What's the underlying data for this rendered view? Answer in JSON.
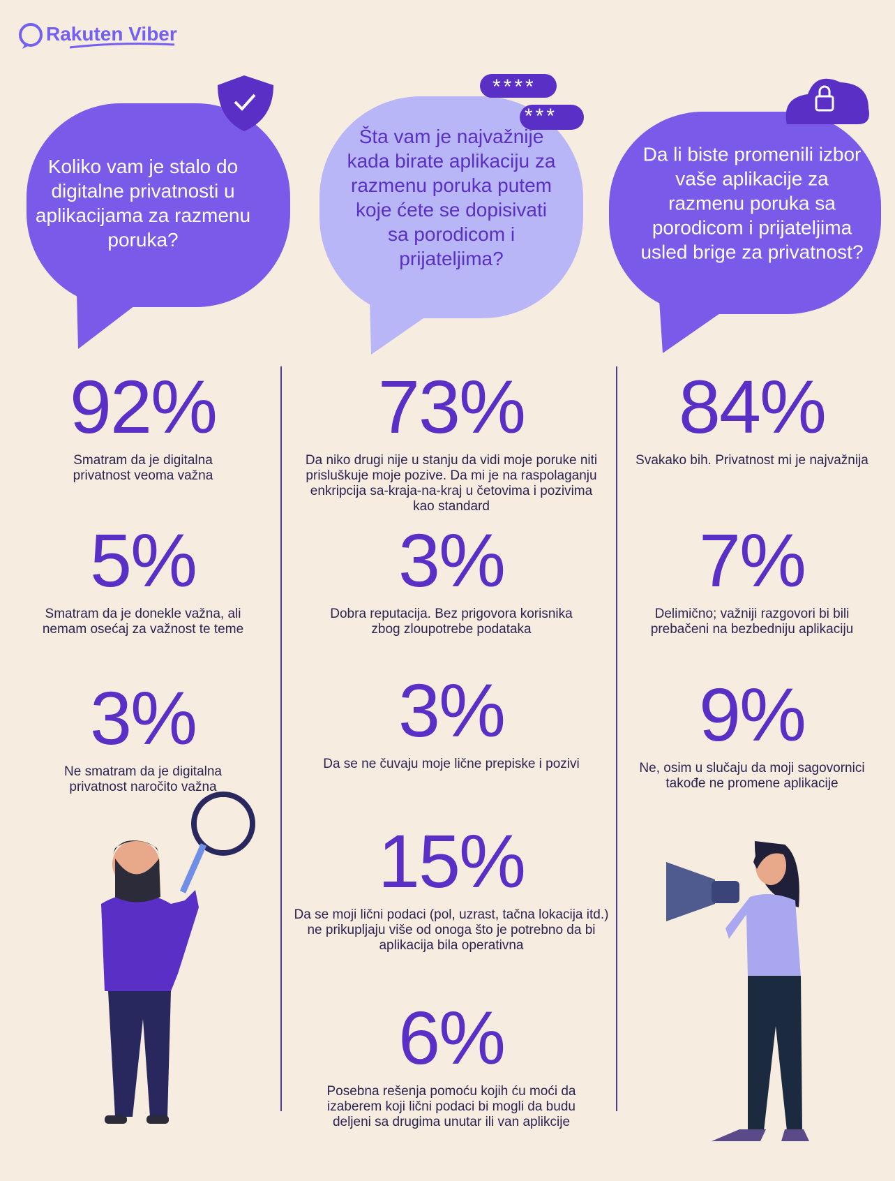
{
  "logo": "Rakuten Viber",
  "columns": [
    {
      "question": "Koliko vam je stalo do digitalne privatnosti u aplikacijama za razmenu poruka?",
      "stats": [
        {
          "value": "92%",
          "label": "Smatram da je digitalna privatnost veoma važna"
        },
        {
          "value": "5%",
          "label": "Smatram da je donekle važna, ali nemam osećaj za važnost te teme"
        },
        {
          "value": "3%",
          "label": "Ne smatram da je digitalna privatnost naročito važna"
        }
      ]
    },
    {
      "question": "Šta vam je najvažnije kada birate aplikaciju za razmenu poruka putem koje ćete se dopisivati sa porodicom i prijateljima?",
      "badges": [
        "****",
        "***"
      ],
      "stats": [
        {
          "value": "73%",
          "label": "Da niko drugi nije u stanju da vidi moje poruke niti prisluškuje moje pozive. Da mi je na raspolaganju enkripcija sa-kraja-na-kraj u četovima i pozivima kao standard"
        },
        {
          "value": "3%",
          "label": "Dobra reputacija. Bez prigovora korisnika zbog zloupotrebe podataka"
        },
        {
          "value": "3%",
          "label": "Da se ne čuvaju moje lične prepiske i pozivi"
        },
        {
          "value": "15%",
          "label": "Da se moji lični podaci (pol, uzrast, tačna lokacija itd.) ne prikupljaju više od onoga što je potrebno da bi aplikacija bila operativna"
        },
        {
          "value": "6%",
          "label": "Posebna rešenja pomoću kojih ću moći da izaberem koji lični podaci bi mogli da budu deljeni sa drugima unutar ili van aplikcije"
        }
      ]
    },
    {
      "question": "Da li biste promenili izbor vaše aplikacije za razmenu poruka sa porodicom i prijateljima usled brige za privatnost?",
      "stats": [
        {
          "value": "84%",
          "label": "Svakako bih. Privatnost mi je najvažnija"
        },
        {
          "value": "7%",
          "label": "Delimično; važniji razgovori bi bili prebačeni na bezbedniju aplikaciju"
        },
        {
          "value": "9%",
          "label": "Ne, osim u slučaju da moji sagovornici takođe ne promene aplikacije"
        }
      ]
    }
  ]
}
